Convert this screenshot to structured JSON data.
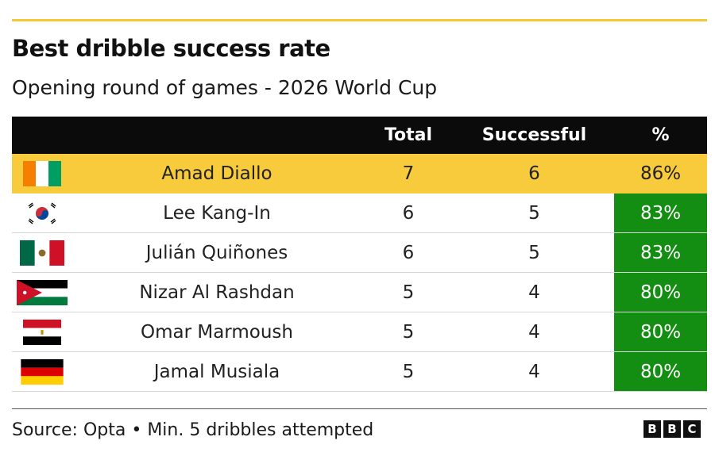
{
  "title": "Best dribble success rate",
  "subtitle": "Opening round of games - 2026 World Cup",
  "chart_data": {
    "type": "table",
    "columns": [
      "",
      "Total",
      "Successful",
      "%"
    ],
    "rows": [
      {
        "flag": "ivory-coast-flag-icon",
        "player": "Amad Diallo",
        "total": "7",
        "successful": "6",
        "pct": "86%",
        "highlight": true
      },
      {
        "flag": "south-korea-flag-icon",
        "player": "Lee Kang-In",
        "total": "6",
        "successful": "5",
        "pct": "83%",
        "highlight": false
      },
      {
        "flag": "mexico-flag-icon",
        "player": "Julián Quiñones",
        "total": "6",
        "successful": "5",
        "pct": "83%",
        "highlight": false
      },
      {
        "flag": "jordan-flag-icon",
        "player": "Nizar Al Rashdan",
        "total": "5",
        "successful": "4",
        "pct": "80%",
        "highlight": false
      },
      {
        "flag": "egypt-flag-icon",
        "player": "Omar Marmoush",
        "total": "5",
        "successful": "4",
        "pct": "80%",
        "highlight": false
      },
      {
        "flag": "germany-flag-icon",
        "player": "Jamal Musiala",
        "total": "5",
        "successful": "4",
        "pct": "80%",
        "highlight": false
      }
    ]
  },
  "colors": {
    "accent": "#f5c83a",
    "highlight_row": "#f7cb3c",
    "pct_cell": "#138d12",
    "header": "#0b0b0b"
  },
  "footer": {
    "source": "Source: Opta • Min. 5 dribbles attempted",
    "logo": [
      "B",
      "B",
      "C"
    ]
  }
}
